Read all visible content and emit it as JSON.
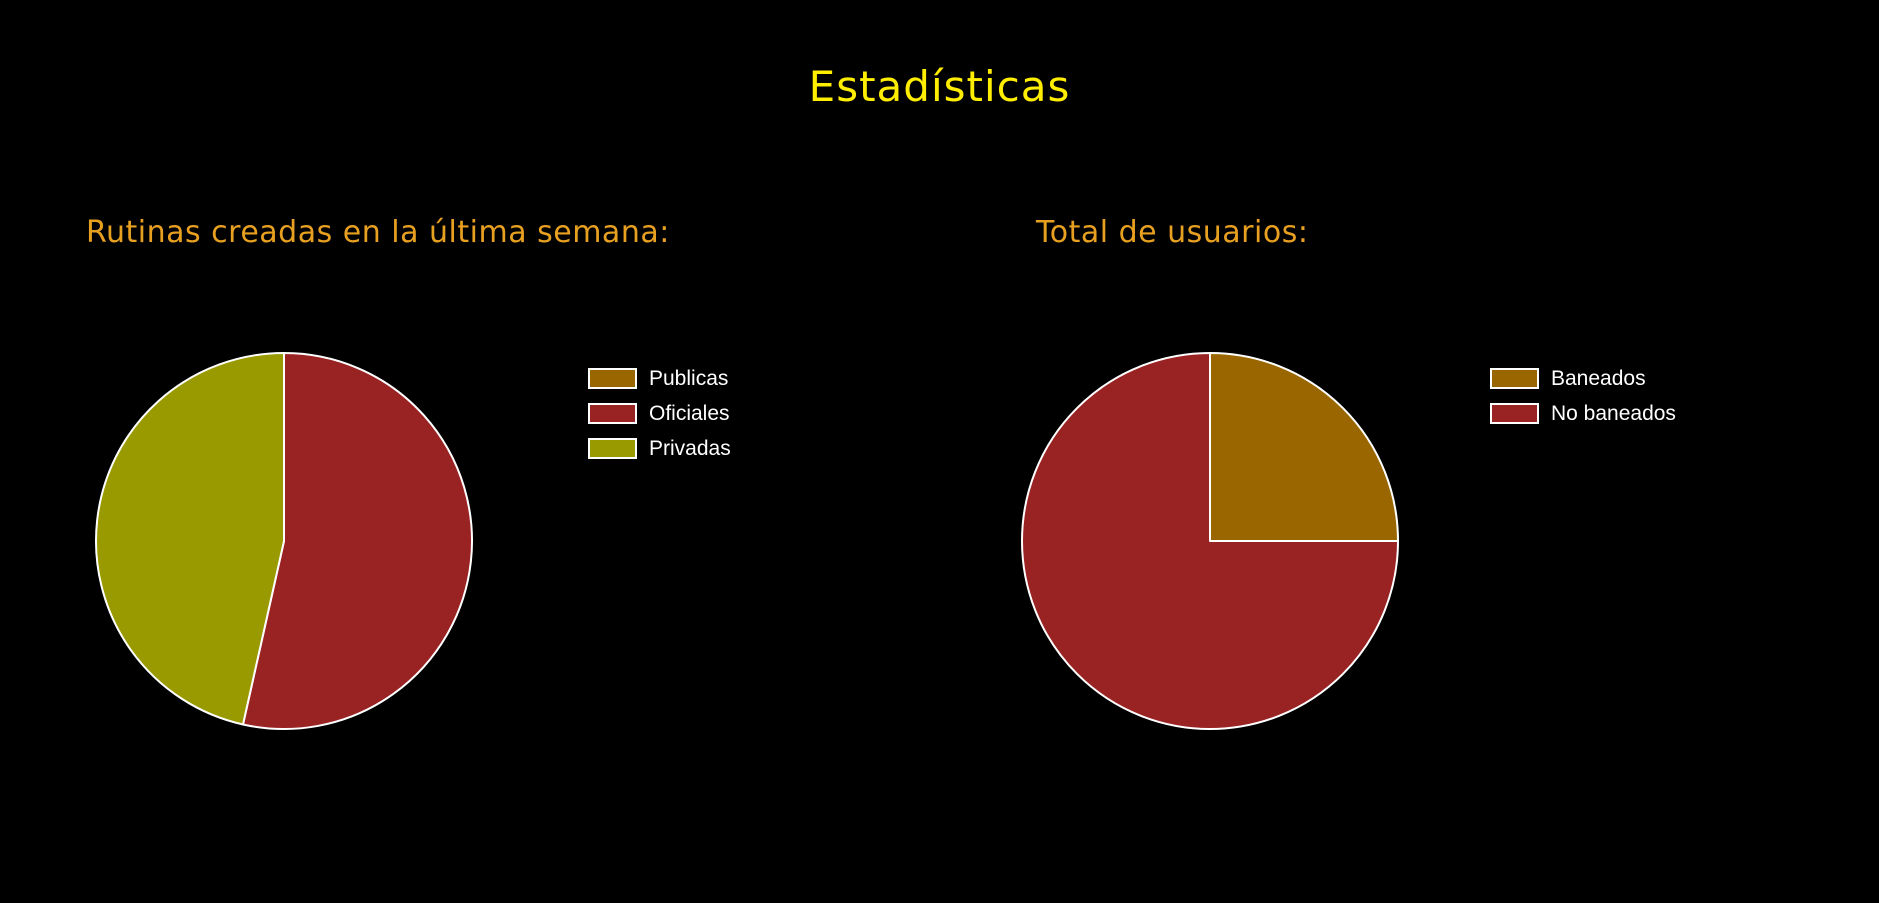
{
  "page": {
    "title": "Estadísticas",
    "title_color": "#ffee00",
    "background": "#000000"
  },
  "chart_data": [
    {
      "type": "pie",
      "title": "Rutinas creadas en la última semana:",
      "title_color": "#e8a020",
      "legend": "right",
      "slice_border": "#ffffff",
      "categories": [
        "Publicas",
        "Oficiales",
        "Privadas"
      ],
      "values": [
        0,
        53.5,
        46.5
      ],
      "colors": [
        "#996600",
        "#992222",
        "#999900"
      ]
    },
    {
      "type": "pie",
      "title": "Total de usuarios:",
      "title_color": "#e8a020",
      "legend": "right",
      "slice_border": "#ffffff",
      "categories": [
        "Baneados",
        "No baneados"
      ],
      "values": [
        25,
        75
      ],
      "colors": [
        "#996600",
        "#992222"
      ]
    }
  ]
}
